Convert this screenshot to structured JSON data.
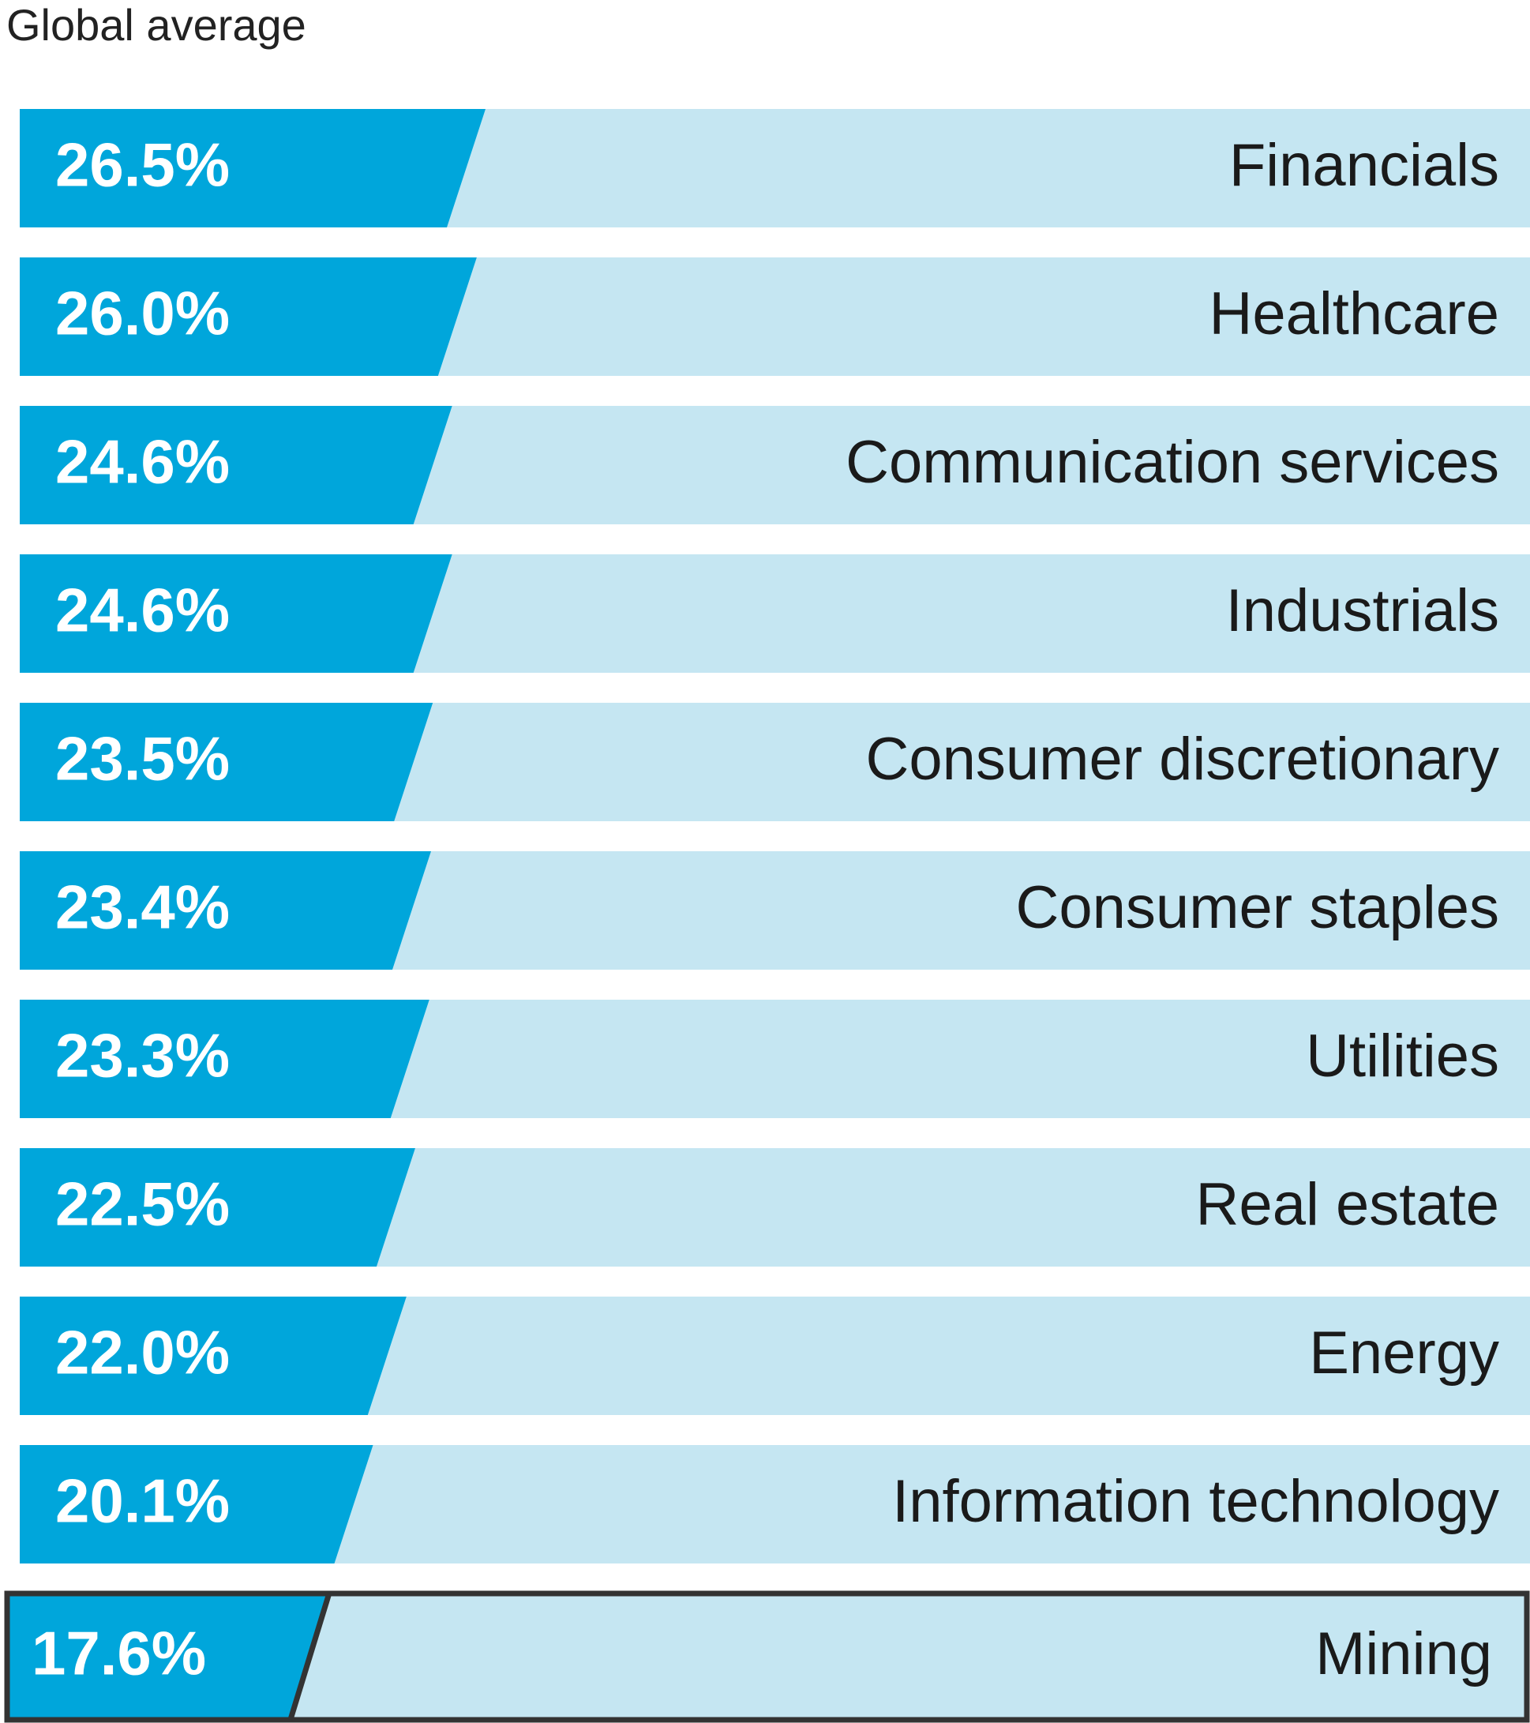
{
  "chart_data": {
    "type": "bar",
    "title": "Global average",
    "categories": [
      "Financials",
      "Healthcare",
      "Communication services",
      "Industrials",
      "Consumer discretionary",
      "Consumer staples",
      "Utilities",
      "Real estate",
      "Energy",
      "Information technology",
      "Mining"
    ],
    "values": [
      26.5,
      26.0,
      24.6,
      24.6,
      23.5,
      23.4,
      23.3,
      22.5,
      22.0,
      20.1,
      17.6
    ],
    "value_labels": [
      "26.5%",
      "26.0%",
      "24.6%",
      "24.6%",
      "23.5%",
      "23.4%",
      "23.3%",
      "22.5%",
      "22.0%",
      "20.1%",
      "17.6%"
    ],
    "color": "#00a6db",
    "background_color": "#c5e6f2",
    "highlight": "Mining"
  }
}
